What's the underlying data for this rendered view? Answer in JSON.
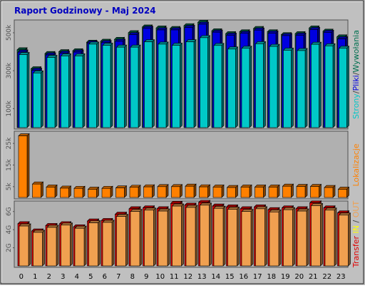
{
  "chart_data": {
    "type": "bar",
    "title": "Raport Godzinowy -  Maj 2024",
    "categories": [
      "0",
      "1",
      "2",
      "3",
      "4",
      "5",
      "6",
      "7",
      "8",
      "9",
      "10",
      "11",
      "12",
      "13",
      "14",
      "15",
      "16",
      "17",
      "18",
      "19",
      "20",
      "21",
      "22",
      "23"
    ],
    "panels": [
      {
        "id": "pages",
        "ylabel_parts": [
          {
            "text": "Strony",
            "color": "#00c8c8"
          },
          {
            "text": "/",
            "color": "#404040"
          },
          {
            "text": "Pliki",
            "color": "#0000e0"
          },
          {
            "text": "/",
            "color": "#404040"
          },
          {
            "text": "Wywołania",
            "color": "#007050"
          }
        ],
        "ylim": [
          0,
          560000
        ],
        "yticks": [
          {
            "value": 100000,
            "label": "100k"
          },
          {
            "value": 300000,
            "label": "300k"
          },
          {
            "value": 500000,
            "label": "500k"
          }
        ],
        "series": [
          {
            "name": "Wywołania",
            "color": "#007050",
            "values": [
              410000,
              310000,
              390000,
              400000,
              405000,
              450000,
              455000,
              465000,
              500000,
              530000,
              525000,
              522000,
              537000,
              555000,
              510000,
              495000,
              505000,
              522000,
              505000,
              490000,
              495000,
              525000,
              508000,
              478000
            ]
          },
          {
            "name": "Pliki",
            "color": "#0000e0",
            "values": [
              398000,
              302000,
              383000,
              392000,
              398000,
              446000,
              448000,
              455000,
              490000,
              523000,
              515000,
              515000,
              528000,
              545000,
              503000,
              487000,
              497000,
              514000,
              498000,
              485000,
              487000,
              517000,
              502000,
              468000
            ]
          },
          {
            "name": "Strony",
            "color": "#00c8c8",
            "values": [
              385000,
              288000,
              370000,
              378000,
              378000,
              440000,
              434000,
              424000,
              424000,
              452000,
              440000,
              434000,
              452000,
              474000,
              433000,
              414000,
              418000,
              442000,
              428000,
              408000,
              406000,
              439000,
              431000,
              418000
            ]
          }
        ]
      },
      {
        "id": "locations",
        "ylabel_parts": [
          {
            "text": "Lokalizacje",
            "color": "#ff8000"
          }
        ],
        "ylim": [
          0,
          30000
        ],
        "yticks": [
          {
            "value": 5000,
            "label": "5k"
          },
          {
            "value": 15000,
            "label": "15k"
          },
          {
            "value": 25000,
            "label": "25k"
          }
        ],
        "series": [
          {
            "name": "Lokalizacje",
            "color": "#ff8000",
            "values": [
              28500,
              6200,
              4800,
              4300,
              4200,
              3800,
              4200,
              4400,
              4700,
              4900,
              5000,
              5000,
              5200,
              4900,
              4800,
              4600,
              4800,
              4800,
              4800,
              5200,
              5100,
              5100,
              4600,
              3800
            ]
          }
        ]
      },
      {
        "id": "transfer",
        "ylabel_parts": [
          {
            "text": "Transfer",
            "color": "#e00000"
          },
          {
            "text": " IN",
            "color": "#ffff00"
          },
          {
            "text": " / ",
            "color": "#404040"
          },
          {
            "text": "OUT",
            "color": "#f0a050"
          }
        ],
        "ylim": [
          0,
          7000
        ],
        "yticks": [
          {
            "value": 2000,
            "label": "2G"
          },
          {
            "value": 4000,
            "label": "4G"
          },
          {
            "value": 6000,
            "label": "6G"
          }
        ],
        "series": [
          {
            "name": "Transfer",
            "color": "#e00000",
            "values": [
              4650,
              3850,
              4450,
              4650,
              4300,
              4950,
              5000,
              5700,
              6300,
              6400,
              6300,
              6900,
              6700,
              7000,
              6600,
              6500,
              6300,
              6500,
              6200,
              6400,
              6300,
              6950,
              6400,
              5850
            ]
          },
          {
            "name": "OUT",
            "color": "#f0a050",
            "values": [
              4400,
              3700,
              4250,
              4500,
              4150,
              4750,
              4800,
              5450,
              6000,
              6150,
              6050,
              6600,
              6450,
              6700,
              6350,
              6250,
              6000,
              6300,
              5950,
              6200,
              6050,
              6650,
              6150,
              5600
            ]
          }
        ]
      }
    ]
  }
}
